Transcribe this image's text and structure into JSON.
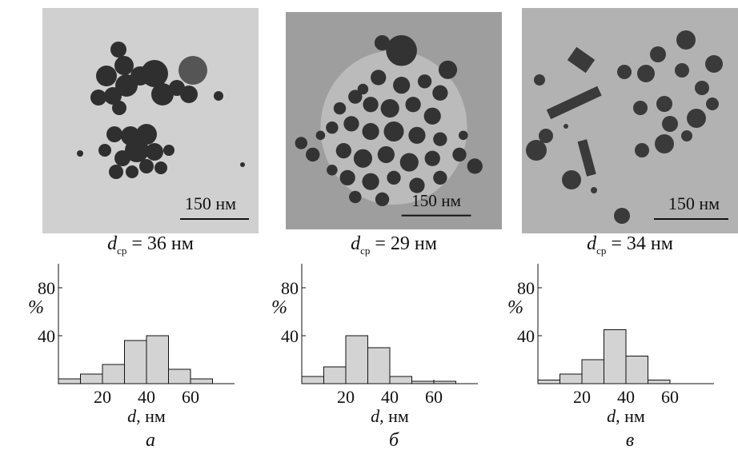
{
  "figure": {
    "scale_bar_label": "150 нм",
    "panels": [
      {
        "letter": "а",
        "d_label_var": "d",
        "d_label_sub": "ср",
        "d_label_value": " = 36 нм",
        "tone": "#d2d2d2",
        "particle_color": "#2f2f2f"
      },
      {
        "letter": "б",
        "d_label_var": "d",
        "d_label_sub": "ср",
        "d_label_value": " = 29 нм",
        "tone": "#9e9e9e",
        "particle_color": "#333333"
      },
      {
        "letter": "в",
        "d_label_var": "d",
        "d_label_sub": "ср",
        "d_label_value": " = 34 нм",
        "tone": "#b0b0b0",
        "particle_color": "#3a3a3a"
      }
    ]
  },
  "chart_data": [
    {
      "type": "bar",
      "xlabel_var": "d",
      "xlabel_unit": ", нм",
      "ylabel": "%",
      "bin_edges": [
        0,
        10,
        20,
        30,
        40,
        50,
        60,
        70,
        80
      ],
      "values": [
        4,
        8,
        16,
        36,
        40,
        12,
        4,
        0
      ],
      "xticks": [
        20,
        40,
        60
      ],
      "yticks": [
        40,
        80
      ],
      "xlim": [
        0,
        80
      ],
      "ylim": [
        0,
        100
      ],
      "bar_color": "#d3d3d3"
    },
    {
      "type": "bar",
      "xlabel_var": "d",
      "xlabel_unit": ", нм",
      "ylabel": "%",
      "bin_edges": [
        0,
        10,
        20,
        30,
        40,
        50,
        60,
        70,
        80
      ],
      "values": [
        6,
        14,
        40,
        30,
        6,
        2,
        2,
        0
      ],
      "xticks": [
        20,
        40,
        60
      ],
      "yticks": [
        40,
        80
      ],
      "xlim": [
        0,
        80
      ],
      "ylim": [
        0,
        100
      ],
      "bar_color": "#d3d3d3"
    },
    {
      "type": "bar",
      "xlabel_var": "d",
      "xlabel_unit": ", нм",
      "ylabel": "%",
      "bin_edges": [
        0,
        10,
        20,
        30,
        40,
        50,
        60,
        70,
        80
      ],
      "values": [
        3,
        8,
        20,
        45,
        23,
        3,
        0,
        0
      ],
      "xticks": [
        20,
        40,
        60
      ],
      "yticks": [
        40,
        80
      ],
      "xlim": [
        0,
        80
      ],
      "ylim": [
        0,
        100
      ],
      "bar_color": "#d3d3d3"
    }
  ]
}
